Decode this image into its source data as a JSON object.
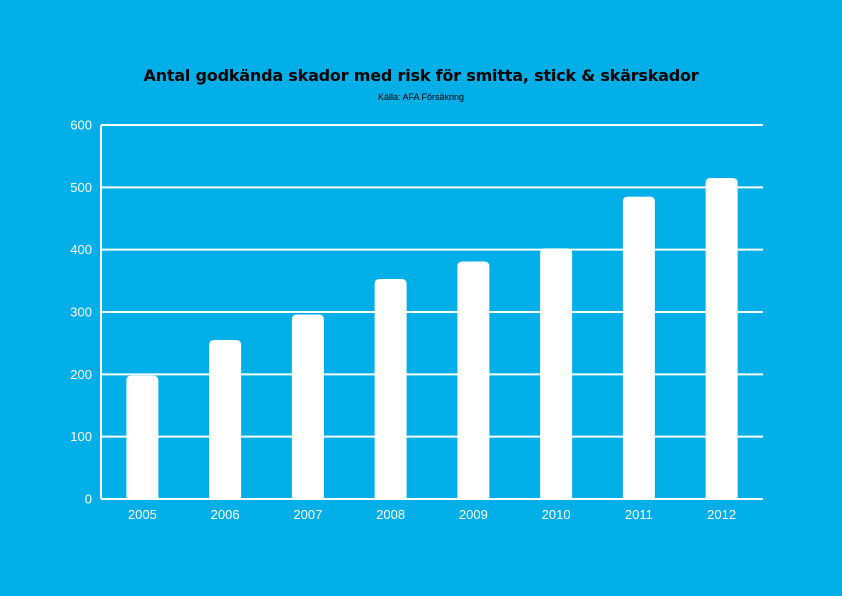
{
  "chart_data": {
    "type": "bar",
    "title": "Antal godkända skador med risk för smitta, stick & skärskador",
    "subtitle": "Källa: AFA Försäkring",
    "categories": [
      "2005",
      "2006",
      "2007",
      "2008",
      "2009",
      "2010",
      "2011",
      "2012"
    ],
    "values": [
      198,
      255,
      296,
      353,
      381,
      402,
      485,
      515
    ],
    "yticks": [
      "0",
      "100",
      "200",
      "300",
      "400",
      "500",
      "600"
    ],
    "ylim": [
      0,
      600
    ],
    "grid": true,
    "colors": {
      "background": "#00aee8",
      "bar": "#ffffff",
      "grid": "#ffffff",
      "text": "#ffffff",
      "title": "#000000"
    }
  }
}
